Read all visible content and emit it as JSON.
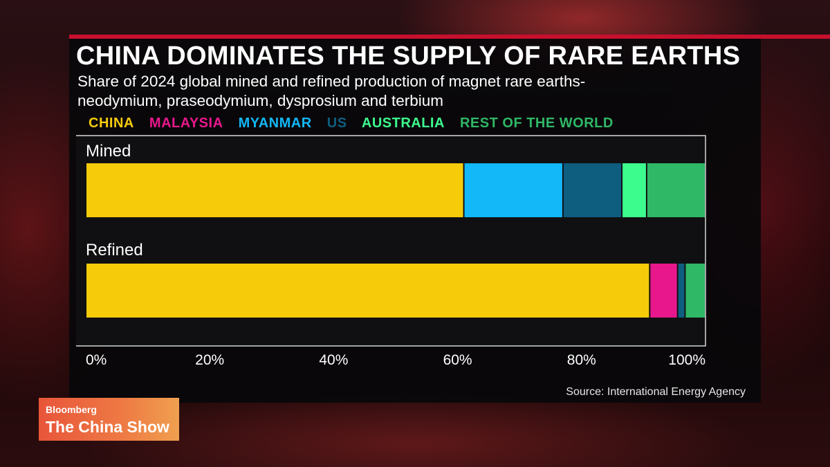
{
  "title": "CHINA DOMINATES THE SUPPLY OF RARE EARTHS",
  "subtitle_line1": "Share of 2024 global mined and refined production of magnet rare earths-",
  "subtitle_line2": "neodymium, praseodymium, dysprosium and terbium",
  "source": "Source: International Energy Agency",
  "logo": {
    "brand": "Bloomberg",
    "show": "The China Show"
  },
  "chart_data": {
    "type": "bar",
    "orientation": "horizontal",
    "stacked": true,
    "categories": [
      "Mined",
      "Refined"
    ],
    "series": [
      {
        "name": "CHINA",
        "color": "#f5cb0a",
        "values": [
          61,
          91
        ]
      },
      {
        "name": "MALAYSIA",
        "color": "#e8188c",
        "values": [
          0,
          4.5
        ]
      },
      {
        "name": "MYANMAR",
        "color": "#12b8f7",
        "values": [
          16,
          0
        ]
      },
      {
        "name": "US",
        "color": "#0e5e80",
        "values": [
          9.5,
          1.2
        ]
      },
      {
        "name": "AUSTRALIA",
        "color": "#3dfc8e",
        "values": [
          4,
          0
        ]
      },
      {
        "name": "REST OF THE WORLD",
        "color": "#2fb866",
        "values": [
          9.5,
          3.3
        ]
      }
    ],
    "xlim": [
      0,
      100
    ],
    "x_ticks": [
      "0%",
      "20%",
      "40%",
      "60%",
      "80%",
      "100%"
    ],
    "legend_position": "top",
    "grid": false
  }
}
